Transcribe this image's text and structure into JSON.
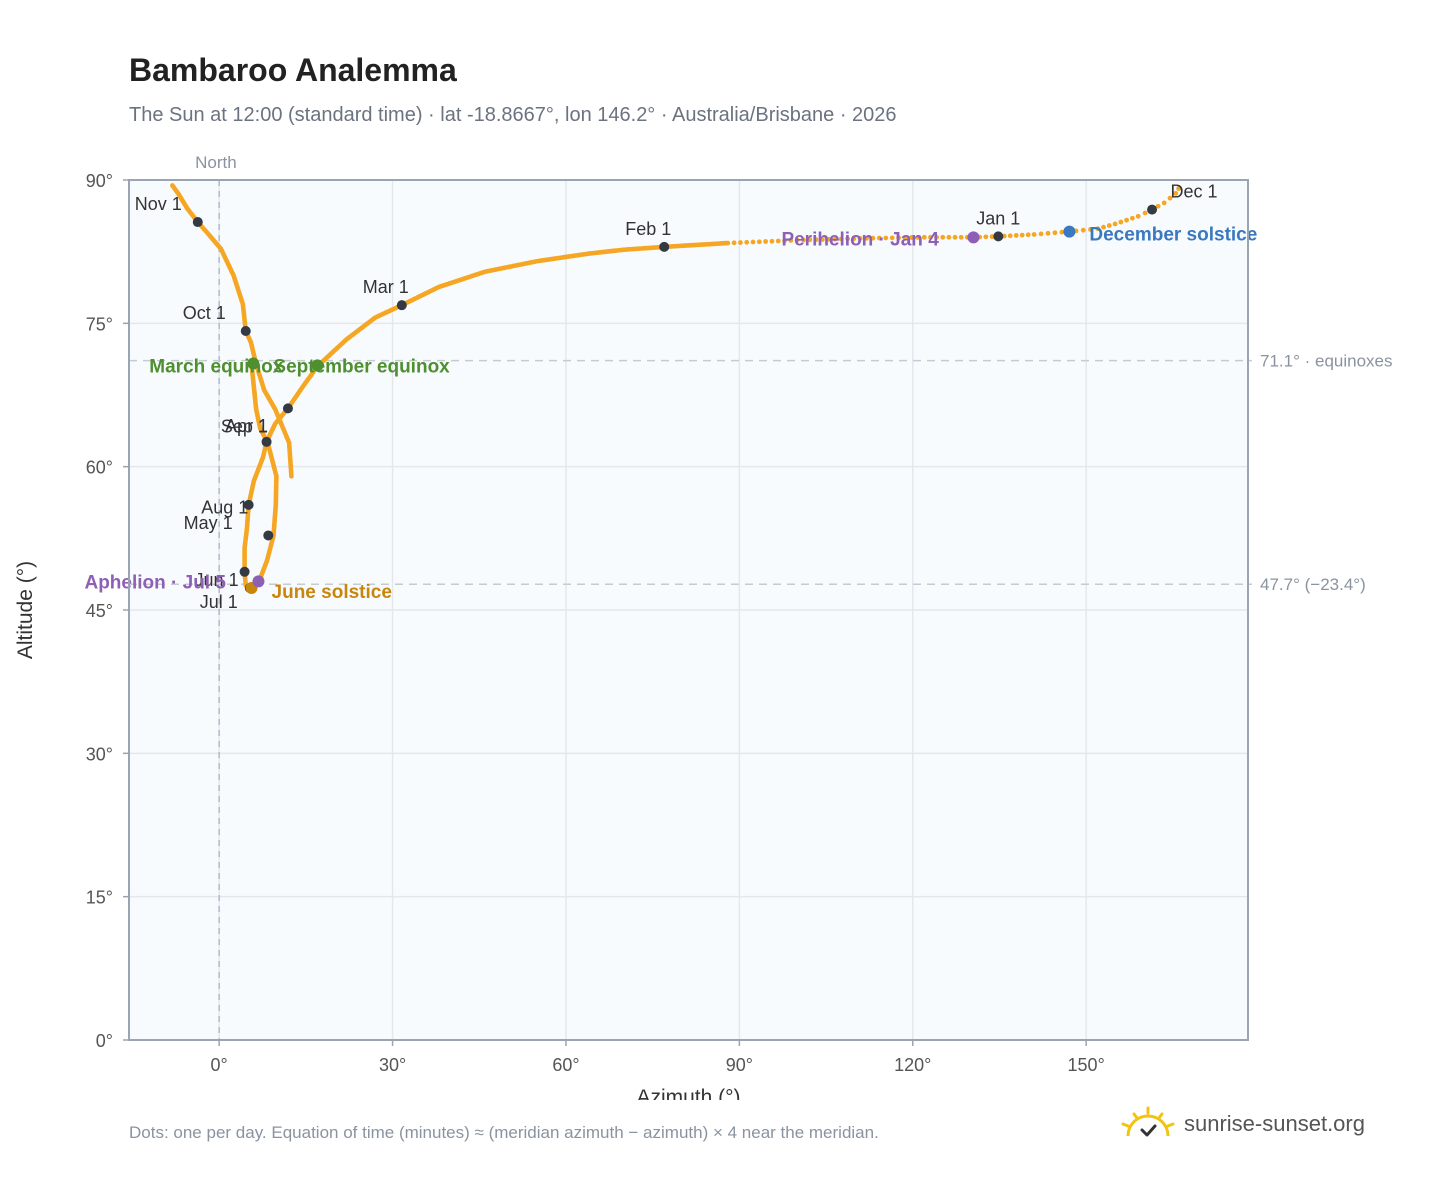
{
  "header": {
    "title": "Bambaroo Analemma",
    "subtitle": "The Sun at 12:00 (standard time) · lat -18.8667°, lon 146.2° · Australia/Brisbane · 2026"
  },
  "footer": {
    "note": "Dots: one per day. Equation of time (minutes) ≈ (meridian azimuth − azimuth) × 4 near the meridian.",
    "brand": "sunrise-sunset.org",
    "brand_icon": "sun-logo-icon"
  },
  "colors": {
    "curve": "#f5a623",
    "month_marker": "#333a44",
    "equinox": "#4e8f2f",
    "june_solstice": "#c8860d",
    "december_solstice": "#3a78c0",
    "apsis": "#8d5fb5",
    "plot_bg": "#f8fbfe",
    "grid": "#e3e8ee",
    "frame": "#9aa4b2",
    "reference_line": "#c5cbd3"
  },
  "chart_data": {
    "type": "scatter",
    "xlabel": "Azimuth (°)",
    "ylabel": "Altitude (°)",
    "xlim": [
      -15.6,
      178
    ],
    "ylim": [
      0,
      90
    ],
    "x_ticks": [
      {
        "value": 0,
        "label": "0°"
      },
      {
        "value": 30,
        "label": "30°"
      },
      {
        "value": 60,
        "label": "60°"
      },
      {
        "value": 90,
        "label": "90°"
      },
      {
        "value": 120,
        "label": "120°"
      },
      {
        "value": 150,
        "label": "150°"
      }
    ],
    "y_ticks": [
      {
        "value": 0,
        "label": "0°"
      },
      {
        "value": 15,
        "label": "15°"
      },
      {
        "value": 30,
        "label": "30°"
      },
      {
        "value": 45,
        "label": "45°"
      },
      {
        "value": 60,
        "label": "60°"
      },
      {
        "value": 75,
        "label": "75°"
      },
      {
        "value": 90,
        "label": "90°"
      }
    ],
    "grid": true,
    "meridian": {
      "azimuth": 0,
      "label": "North"
    },
    "reference_lines": [
      {
        "altitude": 71.1,
        "label": "71.1° · equinoxes"
      },
      {
        "altitude": 47.7,
        "label": "47.7° (−23.4°)"
      }
    ],
    "path_points": [
      [
        12.5,
        59
      ],
      [
        12.1,
        62.5
      ],
      [
        9.7,
        66
      ],
      [
        7.8,
        68
      ],
      [
        6.4,
        70.7
      ],
      [
        5.5,
        73
      ],
      [
        4.6,
        74.2
      ],
      [
        4.1,
        77
      ],
      [
        2.5,
        80
      ],
      [
        0.3,
        82.8
      ],
      [
        -2.1,
        84.5
      ],
      [
        -3.7,
        85.6
      ],
      [
        -5.5,
        87
      ],
      [
        -7,
        88.5
      ],
      [
        -8.3,
        89.6
      ]
    ],
    "path_points_2": [
      [
        4.6,
        47.6
      ],
      [
        4.9,
        47.4
      ],
      [
        5.6,
        47.3
      ],
      [
        6.3,
        47.5
      ],
      [
        7.1,
        48.3
      ],
      [
        8.3,
        50.2
      ],
      [
        9.4,
        52.8
      ],
      [
        9.8,
        56
      ],
      [
        9.9,
        59
      ],
      [
        8.4,
        62.5
      ],
      [
        7.1,
        64
      ],
      [
        6.4,
        66
      ],
      [
        5.6,
        70.7
      ]
    ],
    "path_points_3": [
      [
        4.6,
        47.6
      ],
      [
        4.4,
        49
      ],
      [
        4.4,
        51.5
      ],
      [
        4.8,
        53.5
      ],
      [
        5.1,
        56
      ],
      [
        6,
        58.5
      ],
      [
        7.6,
        61
      ],
      [
        8.2,
        62.6
      ],
      [
        9.7,
        64.5
      ],
      [
        11.9,
        66.1
      ],
      [
        14.5,
        68.4
      ],
      [
        17,
        70.5
      ],
      [
        22,
        73.3
      ],
      [
        27,
        75.6
      ],
      [
        31.6,
        76.9
      ],
      [
        38,
        78.8
      ],
      [
        46,
        80.4
      ],
      [
        55,
        81.5
      ],
      [
        64,
        82.3
      ],
      [
        70,
        82.7
      ],
      [
        77,
        83
      ],
      [
        88,
        83.4
      ],
      [
        100,
        83.7
      ],
      [
        112,
        83.9
      ],
      [
        122,
        84
      ],
      [
        130.5,
        84
      ],
      [
        134.8,
        84.1
      ],
      [
        141,
        84.3
      ],
      [
        147,
        84.6
      ],
      [
        152,
        84.9
      ],
      [
        155,
        85.4
      ],
      [
        159,
        86.2
      ],
      [
        161.4,
        86.9
      ],
      [
        163.5,
        87.6
      ],
      [
        165.5,
        88.6
      ],
      [
        166.5,
        89.6
      ]
    ],
    "dense_x_from": 77,
    "month_markers": [
      {
        "label": "Jan 1",
        "x": 134.8,
        "y": 84.1
      },
      {
        "label": "Feb 1",
        "x": 77.0,
        "y": 83.0
      },
      {
        "label": "Mar 1",
        "x": 31.6,
        "y": 76.9
      },
      {
        "label": "Apr 1",
        "x": 8.2,
        "y": 62.6
      },
      {
        "label": "May 1",
        "x": 5.1,
        "y": 56.0
      },
      {
        "label": "Jun 1",
        "x": 4.4,
        "y": 49.0
      },
      {
        "label": "Jul 1",
        "x": 5.3,
        "y": 47.3
      },
      {
        "label": "Aug 1",
        "x": 8.5,
        "y": 52.8
      },
      {
        "label": "Sep 1",
        "x": 11.9,
        "y": 66.1
      },
      {
        "label": "Oct 1",
        "x": 4.6,
        "y": 74.2
      },
      {
        "label": "Nov 1",
        "x": -3.7,
        "y": 85.6
      },
      {
        "label": "Dec 1",
        "x": 161.4,
        "y": 86.9
      }
    ],
    "events": [
      {
        "label": "March equinox",
        "x": 5.9,
        "y": 70.8,
        "kind": "equinox"
      },
      {
        "label": "September equinox",
        "x": 17.0,
        "y": 70.6,
        "kind": "equinox"
      },
      {
        "label": "June solstice",
        "x": 5.6,
        "y": 47.3,
        "kind": "june_solstice"
      },
      {
        "label": "December solstice",
        "x": 147.1,
        "y": 84.6,
        "kind": "december_solstice"
      },
      {
        "label": "Aphelion · Jul 5",
        "x": 6.8,
        "y": 48.0,
        "kind": "apsis"
      },
      {
        "label": "Perihelion · Jan 4",
        "x": 130.5,
        "y": 84.0,
        "kind": "apsis"
      }
    ]
  }
}
